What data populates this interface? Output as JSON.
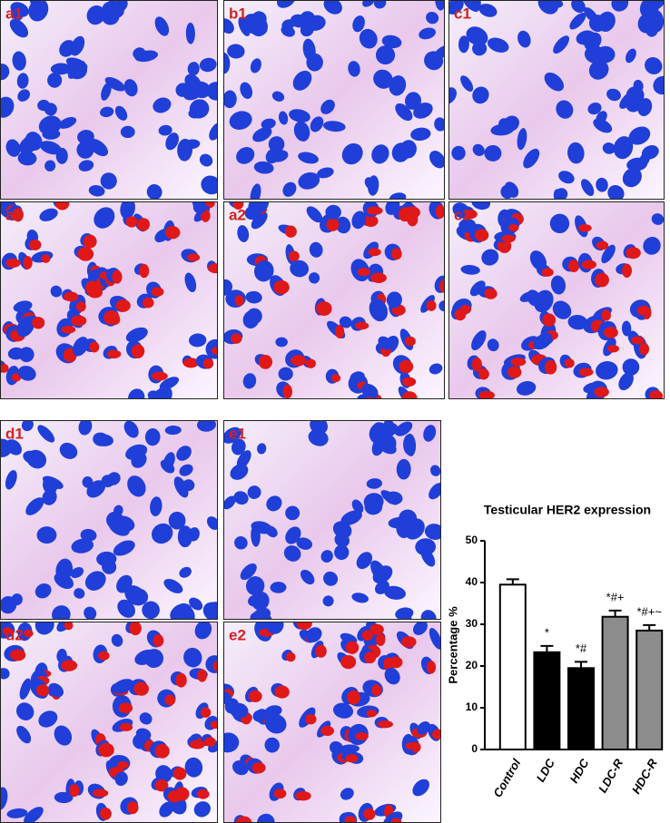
{
  "panels": [
    {
      "label": "a1"
    },
    {
      "label": "b1"
    },
    {
      "label": "c1"
    },
    {
      "label": "a2"
    },
    {
      "label": "a2"
    },
    {
      "label": "c2"
    },
    {
      "label": "d1"
    },
    {
      "label": "e1"
    },
    {
      "label": "d2"
    },
    {
      "label": "e2"
    }
  ],
  "chart_data": {
    "type": "bar",
    "title": "Testicular HER2 expression",
    "y_label": "Percentage %",
    "categories": [
      "Control",
      "LDC",
      "HDC",
      "LDC-R",
      "HDC-R"
    ],
    "values": [
      39.5,
      23.3,
      19.5,
      31.8,
      28.5
    ],
    "errors": [
      1.3,
      1.5,
      1.5,
      1.5,
      1.3
    ],
    "annotations": [
      "",
      "*",
      "*#",
      "*#+",
      "*#+~"
    ],
    "colors": [
      "#ffffff",
      "#000000",
      "#000000",
      "#8c8c8c",
      "#8c8c8c"
    ],
    "ylim": [
      0,
      50
    ],
    "yticks": [
      0,
      10,
      20,
      30,
      40,
      50
    ]
  }
}
